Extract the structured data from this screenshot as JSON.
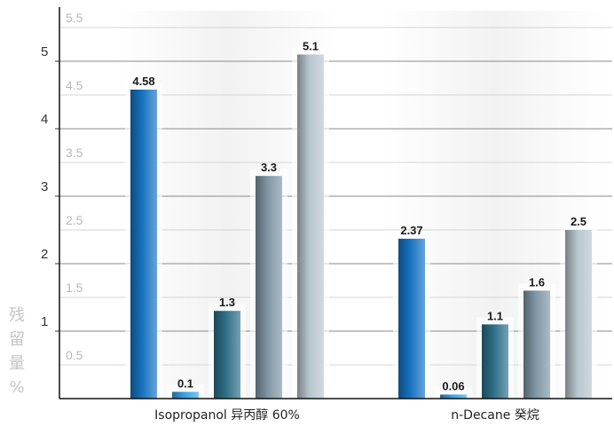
{
  "chart_data": {
    "type": "bar",
    "categories": [
      "Isopropanol 异丙醇 60%",
      "n-Decane 癸烷"
    ],
    "series": [
      {
        "values": [
          4.58,
          2.37
        ],
        "labels": [
          "4.58",
          "2.37"
        ],
        "color": "#1673c2"
      },
      {
        "values": [
          0.1,
          0.06
        ],
        "labels": [
          "0.1",
          "0.06"
        ],
        "color": "#35a2e0"
      },
      {
        "values": [
          1.3,
          1.1
        ],
        "labels": [
          "1.3",
          "1.1"
        ],
        "color": "#2d6f88"
      },
      {
        "values": [
          3.3,
          1.6
        ],
        "labels": [
          "3.3",
          "1.6"
        ],
        "color": "#7f96a4"
      },
      {
        "values": [
          5.1,
          2.5
        ],
        "labels": [
          "5.1",
          "2.5"
        ],
        "color": "#b7c6cd"
      }
    ],
    "ylabel": "残留量%",
    "ylim": [
      0,
      5.6
    ],
    "yticks_major": [
      "1",
      "2",
      "3",
      "4",
      "5"
    ],
    "yticks_minor": [
      "0.5",
      "1.5",
      "2.5",
      "3.5",
      "4.5",
      "5.5"
    ],
    "grid": true,
    "legend": "none"
  }
}
